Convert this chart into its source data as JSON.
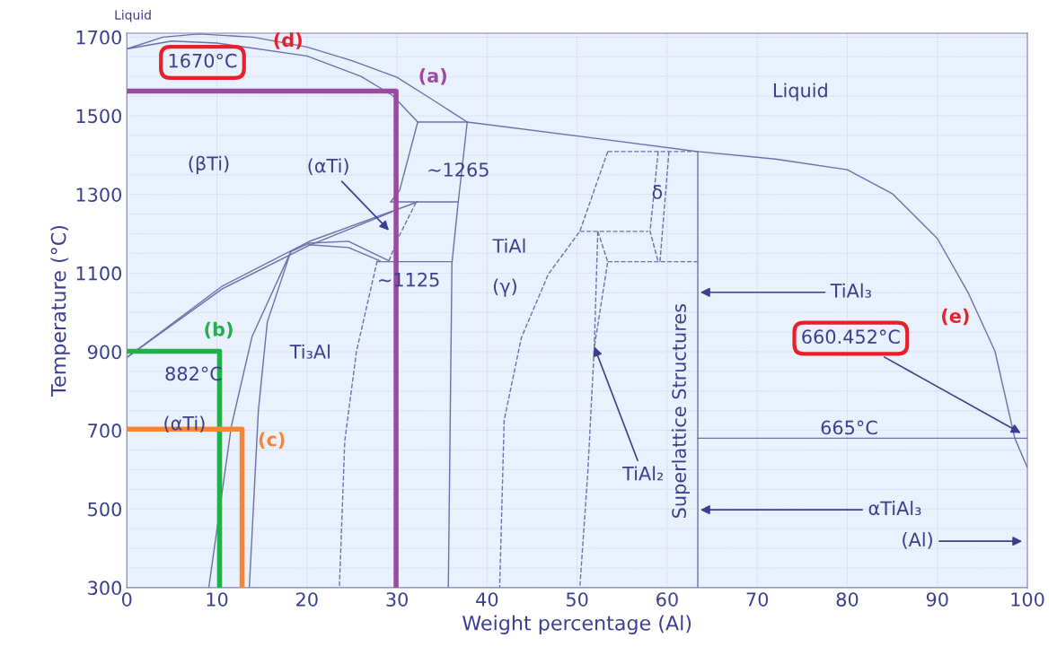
{
  "chart_data": {
    "type": "line",
    "xlabel": "Weight percentage (Al)",
    "ylabel": "Temperature (°C)",
    "xlim": [
      0,
      100
    ],
    "ylim": [
      300,
      1710
    ],
    "xticks": [
      0,
      10,
      20,
      30,
      40,
      50,
      60,
      70,
      80,
      90,
      100
    ],
    "yticks": [
      300,
      {
        "value": 350,
        "label": null
      },
      {
        "value": 400,
        "label": null
      },
      {
        "value": 450,
        "label": null
      },
      500,
      {
        "value": 550,
        "label": null
      },
      {
        "value": 600,
        "label": null
      },
      {
        "value": 650,
        "label": null
      },
      700,
      {
        "value": 750,
        "label": null
      },
      {
        "value": 800,
        "label": null
      },
      {
        "value": 850,
        "label": null
      },
      900,
      {
        "value": 950,
        "label": null
      },
      {
        "value": 1000,
        "label": null
      },
      {
        "value": 1050,
        "label": null
      },
      1100,
      {
        "value": 1150,
        "label": null
      },
      {
        "value": 1200,
        "label": null
      },
      {
        "value": 1250,
        "label": null
      },
      1300,
      {
        "value": 1350,
        "label": null
      },
      {
        "value": 1400,
        "label": null
      },
      {
        "value": 1450,
        "label": null
      },
      1500,
      {
        "value": 1550,
        "label": null
      },
      {
        "value": 1600,
        "label": null
      },
      {
        "value": 1650,
        "label": null
      },
      1700
    ],
    "grid": true,
    "marker": "none",
    "series": [
      {
        "color": "#6b70a8",
        "line_style": "solid",
        "x": [
          0,
          4,
          8,
          14,
          20,
          25,
          30,
          34,
          37.8,
          53,
          63.4,
          72,
          80,
          85,
          90,
          93.4,
          96.4,
          98.6,
          100
        ],
        "values": [
          1670,
          1700,
          1708,
          1700,
          1675,
          1640,
          1598,
          1540,
          1484,
          1440,
          1409,
          1390,
          1363,
          1302,
          1188,
          1051,
          901,
          680,
          605
        ]
      },
      {
        "color": "#6b70a8",
        "line_style": "solid",
        "x": [
          0,
          5,
          10,
          20,
          26,
          29.5,
          32.3,
          37.8
        ],
        "values": [
          1670,
          1690,
          1685,
          1652,
          1600,
          1552,
          1484,
          1484
        ]
      },
      {
        "color": "#6b70a8",
        "line_style": "solid",
        "x": [
          37.8,
          36.8,
          36.1,
          35.7
        ],
        "values": [
          1484,
          1281,
          1125,
          300
        ]
      },
      {
        "color": "#6b70a8",
        "line_style": "solid",
        "x": [
          32.3,
          30.3,
          29.3
        ],
        "values": [
          1484,
          1311,
          1281
        ]
      },
      {
        "color": "#6b70a8",
        "line_style": "solid",
        "x": [
          29.3,
          36.8
        ],
        "values": [
          1281,
          1281
        ]
      },
      {
        "color": "#6b70a8",
        "line_style": "solid",
        "x": [
          27.8,
          36.1
        ],
        "values": [
          1129,
          1129
        ]
      },
      {
        "color": "#6b70a8",
        "line_style": "dashed",
        "x": [
          32.1,
          30.1,
          29.1
        ],
        "values": [
          1279,
          1188,
          1131
        ]
      },
      {
        "color": "#6b70a8",
        "line_style": "solid",
        "x": [
          0,
          10.6,
          20.2,
          32.3
        ],
        "values": [
          885,
          1067,
          1180,
          1281
        ]
      },
      {
        "color": "#6b70a8",
        "line_style": "solid",
        "x": [
          0,
          10.6,
          20.2,
          29.5
        ],
        "values": [
          885,
          1060,
          1170,
          1256
        ]
      },
      {
        "color": "#6b70a8",
        "line_style": "solid",
        "x": [
          18.2,
          20.2,
          24.6,
          29.1
        ],
        "values": [
          1154,
          1176,
          1181,
          1131
        ]
      },
      {
        "color": "#6b70a8",
        "line_style": "solid",
        "x": [
          20.2,
          24.6,
          28.1
        ],
        "values": [
          1172,
          1165,
          1131
        ]
      },
      {
        "color": "#6b70a8",
        "line_style": "solid",
        "x": [
          18.2,
          13.9,
          11.6,
          9.1
        ],
        "values": [
          1154,
          938,
          710,
          300
        ]
      },
      {
        "color": "#6b70a8",
        "line_style": "solid",
        "x": [
          18.2,
          15.6,
          14.6,
          13.6
        ],
        "values": [
          1154,
          976,
          749,
          300
        ]
      },
      {
        "color": "#6b70a8",
        "line_style": "dashed",
        "x": [
          27.8,
          25.5,
          24.2,
          23.6
        ],
        "values": [
          1131,
          901,
          673,
          300
        ]
      },
      {
        "color": "#6b70a8",
        "line_style": "dashed",
        "x": [
          53.4,
          50.3,
          46.8,
          43.8,
          41.9,
          41.4
        ],
        "values": [
          1409,
          1206,
          1097,
          935,
          726,
          300
        ]
      },
      {
        "color": "#6b70a8",
        "line_style": "dashed",
        "x": [
          50.3,
          57.9
        ],
        "values": [
          1206,
          1206
        ]
      },
      {
        "color": "#6b70a8",
        "line_style": "dashed",
        "x": [
          52.3,
          51.9,
          51.2,
          50.3
        ],
        "values": [
          1206,
          910,
          598,
          300
        ]
      },
      {
        "color": "#6b70a8",
        "line_style": "dashed",
        "x": [
          52.3,
          53.4,
          51.9
        ],
        "values": [
          1206,
          1129,
          910
        ]
      },
      {
        "color": "#6b70a8",
        "line_style": "dashed",
        "x": [
          53.4,
          63.4
        ],
        "values": [
          1129,
          1129
        ]
      },
      {
        "color": "#6b70a8",
        "line_style": "dashed",
        "x": [
          53.4,
          63.4
        ],
        "values": [
          1409,
          1409
        ]
      },
      {
        "color": "#6b70a8",
        "line_style": "dashed",
        "x": [
          59.0,
          58.1,
          59.0
        ],
        "values": [
          1409,
          1206,
          1129
        ]
      },
      {
        "color": "#6b70a8",
        "line_style": "dashed",
        "x": [
          60.2,
          59.2
        ],
        "values": [
          1409,
          1129
        ]
      },
      {
        "color": "#6b70a8",
        "line_style": "solid",
        "x": [
          63.4,
          63.4
        ],
        "values": [
          1409,
          300
        ]
      },
      {
        "color": "#6b70a8",
        "line_style": "solid",
        "x": [
          63.4,
          100
        ],
        "values": [
          680,
          680
        ]
      },
      {
        "color": "#9b4aa0",
        "line_style": "solid",
        "x": [
          0,
          29.9,
          29.9
        ],
        "values": [
          1563,
          1563,
          300
        ]
      },
      {
        "color": "#22b04b",
        "line_style": "solid",
        "x": [
          0,
          10.3,
          10.3
        ],
        "values": [
          901,
          901,
          300
        ]
      },
      {
        "color": "#fb8432",
        "line_style": "solid",
        "x": [
          0,
          12.8,
          12.8
        ],
        "values": [
          703,
          703,
          300
        ]
      }
    ],
    "annotations": [
      "Liquid",
      "Liquid",
      "1670°C",
      "(d)",
      "(a)",
      "(βTi)",
      {
        "text": "(αTi)",
        "x": 29.3,
        "y": 1204
      },
      "~1265",
      "~1125",
      "TiAl",
      "(γ)",
      "δ",
      "Ti₃Al",
      "(b)",
      "882°C",
      "(αTi)",
      "(c)",
      "Superlattice Structures",
      {
        "text": "TiAl₃",
        "x": 63.4,
        "y": 1051
      },
      {
        "text": "TiAl₂",
        "x": 51.8,
        "y": 919
      },
      "(e)",
      {
        "text": "660.452°C",
        "x": 99.5,
        "y": 690
      },
      "665°C",
      {
        "text": "αTiAl₃",
        "x": 63.4,
        "y": 498
      },
      "(Al)"
    ]
  }
}
